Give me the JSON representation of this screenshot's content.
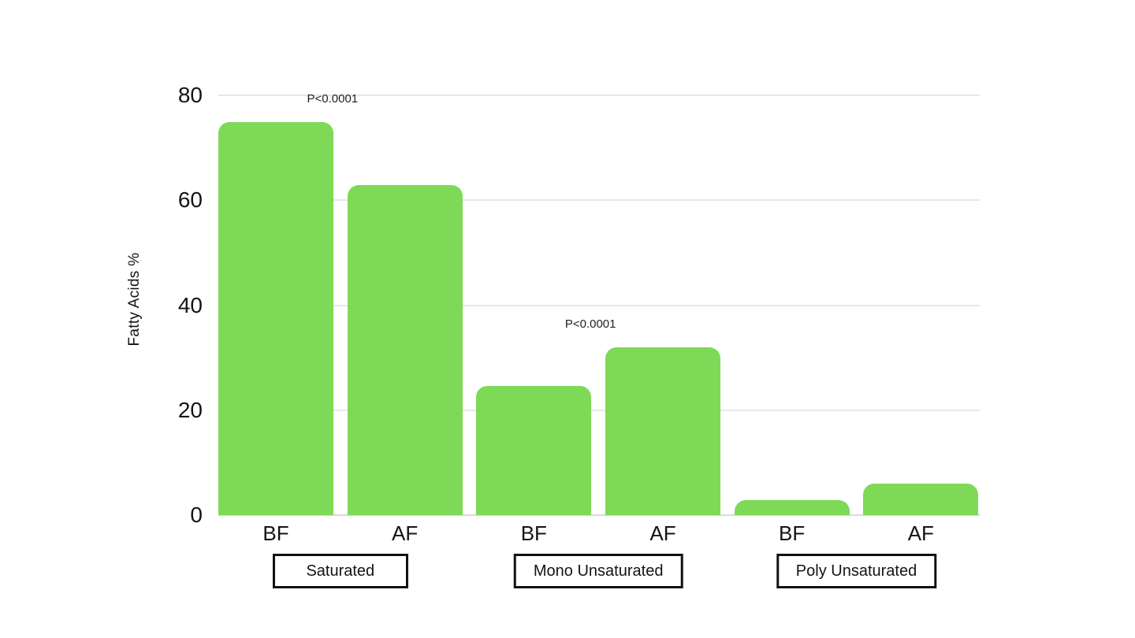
{
  "chart_data": {
    "type": "bar",
    "title": "",
    "xlabel": "",
    "ylabel": "Fatty Acids %",
    "ylim": [
      0,
      80
    ],
    "yticks": [
      0,
      20,
      40,
      60,
      80
    ],
    "grid": true,
    "legend": "none",
    "bar_color": "#7ED957",
    "categories": [
      "Saturated",
      "Mono Unsaturated",
      "Poly Unsaturated"
    ],
    "bar_labels": [
      "BF",
      "AF"
    ],
    "groups": [
      {
        "label": "Saturated",
        "bars": [
          {
            "label": "BF",
            "value": 74.9
          },
          {
            "label": "AF",
            "value": 62.9
          }
        ]
      },
      {
        "label": "Mono Unsaturated",
        "bars": [
          {
            "label": "BF",
            "value": 24.6
          },
          {
            "label": "AF",
            "value": 31.9
          }
        ]
      },
      {
        "label": "Poly Unsaturated",
        "bars": [
          {
            "label": "BF",
            "value": 2.9
          },
          {
            "label": "AF",
            "value": 6.0
          }
        ]
      }
    ],
    "annotations": [
      {
        "text": "P<0.0001",
        "group_index": 0
      },
      {
        "text": "P<0.0001",
        "group_index": 1
      }
    ]
  },
  "colors": {
    "bar": "#7ED957",
    "gridline": "#e7e7e7",
    "baseline": "#d9d9d9",
    "text": "#141414",
    "box_border": "#111111",
    "background": "#ffffff"
  }
}
